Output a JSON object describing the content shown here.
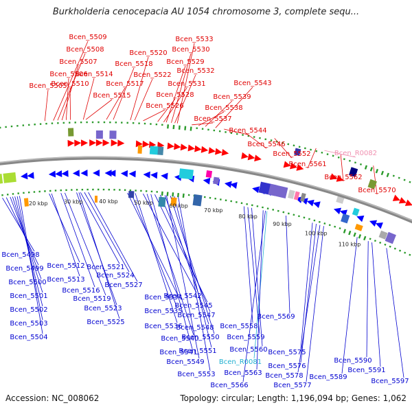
{
  "title": "Burkholderia cenocepacia AU 1054 chromosome 3, complete sequ...",
  "accession": "Accession: NC_008062",
  "summary": "Topology: circular; Length: 1,196,094 bp; Genes: 1,062",
  "colors": {
    "forward_label": "#e00000",
    "reverse_label": "#0000d0",
    "rna_forward_label": "#f090b0",
    "rna_reverse_label": "#20b0d0",
    "backbone": "#888888",
    "dots": "#2a9a2a"
  },
  "ticks": [
    "20 kbp",
    "30 kbp",
    "40 kbp",
    "50 kbp",
    "60 kbp",
    "70 kbp",
    "80 kbp",
    "90 kbp",
    "100 kbp",
    "110 kbp"
  ],
  "top_labels": [
    "Bcen_5509",
    "Bcen_5508",
    "Bcen_5507",
    "Bcen_5506",
    "Bcen_5505",
    "Bcen_5510",
    "Bcen_5514",
    "Bcen_5515",
    "Bcen_5520",
    "Bcen_5518",
    "Bcen_5517",
    "Bcen_5522",
    "Bcen_5526",
    "Bcen_5533",
    "Bcen_5530",
    "Bcen_5529",
    "Bcen_5532",
    "Bcen_5531",
    "Bcen_5528",
    "Bcen_5543",
    "Bcen_5539",
    "Bcen_5538",
    "Bcen_5537",
    "Bcen_5544",
    "Bcen_5546",
    "Bcen_5552",
    "Bcen_R0082",
    "Bcen_5561",
    "Bcen_5562",
    "Bcen_5570"
  ],
  "bottom_labels": [
    "Bcen_5498",
    "Bcen_5499",
    "Bcen_5500",
    "Bcen_5501",
    "Bcen_5502",
    "Bcen_5503",
    "Bcen_5504",
    "Bcen_5512",
    "Bcen_5513",
    "Bcen_5516",
    "Bcen_5519",
    "Bcen_5521",
    "Bcen_5524",
    "Bcen_5527",
    "Bcen_5523",
    "Bcen_5525",
    "Bcen_5534",
    "Bcen_5535",
    "Bcen_5536",
    "Bcen_5542",
    "Bcen_5545",
    "Bcen_5547",
    "Bcen_5548",
    "Bcen_5540",
    "Bcen_5550",
    "Bcen_5541",
    "Bcen_5551",
    "Bcen_5549",
    "Bcen_5553",
    "Bcen_5558",
    "Bcen_5559",
    "Bcen_5560",
    "Bcen_R0081",
    "Bcen_5563",
    "Bcen_5566",
    "Bcen_5569",
    "Bcen_5575",
    "Bcen_5576",
    "Bcen_5578",
    "Bcen_5577",
    "Bcen_5589",
    "Bcen_5590",
    "Bcen_5591",
    "Bcen_5597"
  ]
}
